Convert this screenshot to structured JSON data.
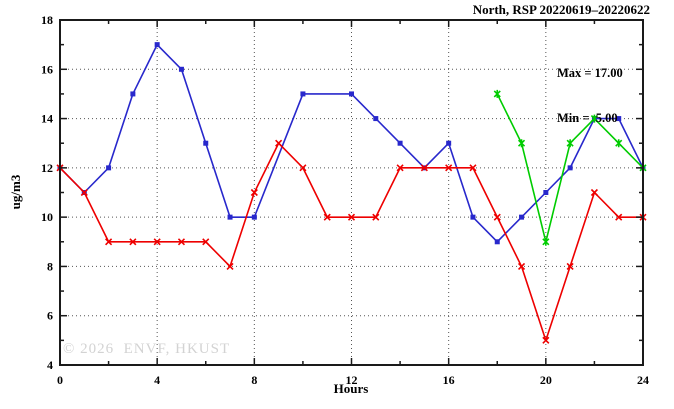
{
  "chart_data": {
    "type": "line",
    "title": "North, RSP 20220619–20220622",
    "xlabel": "Hours",
    "ylabel": "ug/m3",
    "xlim": [
      0,
      24
    ],
    "ylim": [
      4,
      18
    ],
    "x_major_ticks": [
      0,
      4,
      8,
      12,
      16,
      20,
      24
    ],
    "x_minor_ticks": [
      2,
      6,
      10,
      14,
      18,
      22
    ],
    "y_major_ticks": [
      4,
      6,
      8,
      10,
      12,
      14,
      16,
      18
    ],
    "y_minor_ticks": [
      5,
      7,
      9,
      11,
      13,
      15,
      17
    ],
    "x_gridlines": [
      4,
      8,
      12,
      16,
      20
    ],
    "y_gridlines": [
      6,
      8,
      10,
      12,
      14,
      16
    ],
    "grid": true,
    "annotations": {
      "max_label": "Max = 17.00",
      "min_label": "Min =  5.00"
    },
    "watermark": "© 2026  ENVF, HKUST",
    "colors": {
      "axis": "#1a1a1a",
      "grid": "#555555",
      "text": "#000000",
      "watermark": "#d3d3d3",
      "background": "#ffffff"
    },
    "series": [
      {
        "name": "blue",
        "color": "#2828cc",
        "marker": "square",
        "points": [
          [
            0,
            12
          ],
          [
            1,
            11
          ],
          [
            2,
            12
          ],
          [
            3,
            15
          ],
          [
            4,
            17
          ],
          [
            5,
            16
          ],
          [
            6,
            13
          ],
          [
            7,
            10
          ],
          [
            8,
            10
          ],
          [
            10,
            15
          ],
          [
            12,
            15
          ],
          [
            13,
            14
          ],
          [
            14,
            13
          ],
          [
            15,
            12
          ],
          [
            16,
            13
          ],
          [
            17,
            10
          ],
          [
            18,
            9
          ],
          [
            19,
            10
          ],
          [
            20,
            11
          ],
          [
            21,
            12
          ],
          [
            22,
            14
          ],
          [
            23,
            14
          ],
          [
            24,
            12
          ]
        ]
      },
      {
        "name": "red",
        "color": "#ee0000",
        "marker": "x",
        "points": [
          [
            0,
            12
          ],
          [
            1,
            11
          ],
          [
            2,
            9
          ],
          [
            3,
            9
          ],
          [
            4,
            9
          ],
          [
            5,
            9
          ],
          [
            6,
            9
          ],
          [
            7,
            8
          ],
          [
            8,
            11
          ],
          [
            9,
            13
          ],
          [
            10,
            12
          ],
          [
            11,
            10
          ],
          [
            12,
            10
          ],
          [
            13,
            10
          ],
          [
            14,
            12
          ],
          [
            15,
            12
          ],
          [
            16,
            12
          ],
          [
            17,
            12
          ],
          [
            18,
            10
          ],
          [
            19,
            8
          ],
          [
            20,
            5
          ],
          [
            21,
            8
          ],
          [
            22,
            11
          ],
          [
            23,
            10
          ],
          [
            24,
            10
          ]
        ]
      },
      {
        "name": "green",
        "color": "#00cc00",
        "marker": "asterisk",
        "points": [
          [
            18,
            15
          ],
          [
            19,
            13
          ],
          [
            20,
            9
          ],
          [
            21,
            13
          ],
          [
            22,
            14
          ],
          [
            23,
            13
          ],
          [
            24,
            12
          ]
        ]
      }
    ]
  }
}
